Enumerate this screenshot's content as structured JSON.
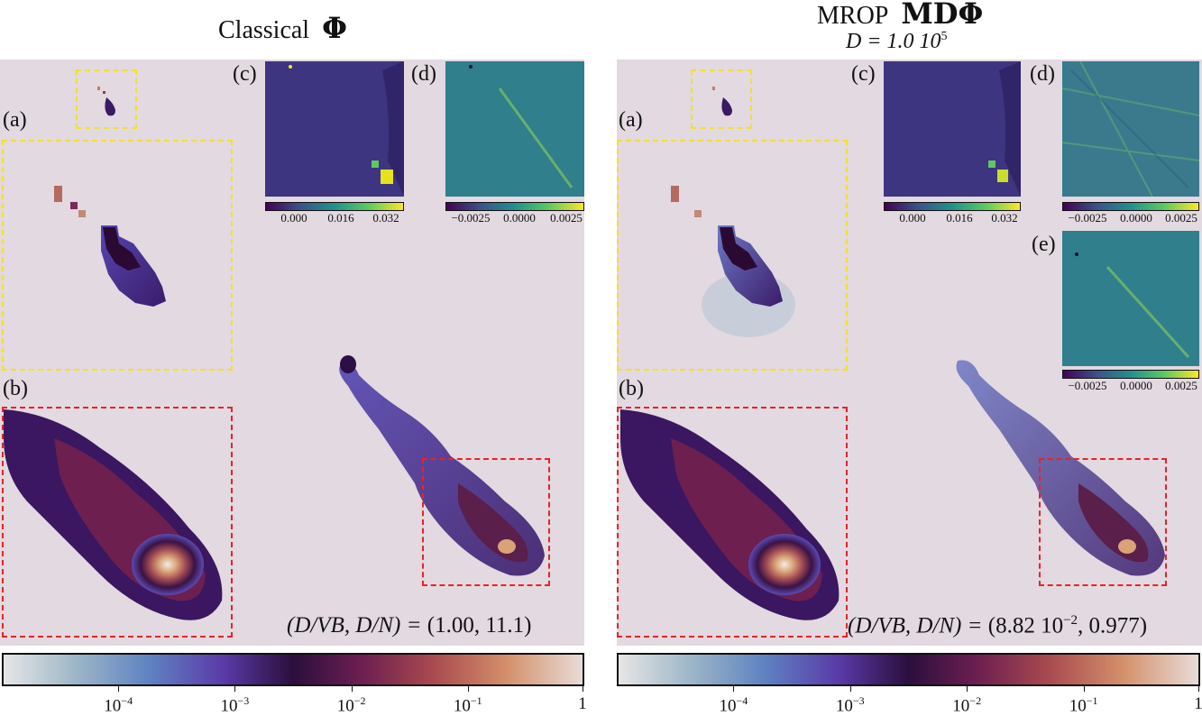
{
  "titles": {
    "left_text": "Classical",
    "left_symbol": "Φ",
    "right_text": "MROP",
    "right_symbol": "MDΦ",
    "right_sub": "D = 1.0 10",
    "right_sub_exp": "5"
  },
  "panel_labels": {
    "a": "(a)",
    "b": "(b)",
    "c": "(c)",
    "d": "(d)",
    "e": "(e)"
  },
  "left": {
    "stat_label": "(D/VB, D/N) =",
    "stat_value": "(1.00, 11.1)",
    "inset_c_ticks": [
      "0.000",
      "0.016",
      "0.032"
    ],
    "inset_d_ticks": [
      "−0.0025",
      "0.0000",
      "0.0025"
    ]
  },
  "right": {
    "stat_label": "(D/VB, D/N) =",
    "stat_value": "(8.82 10",
    "stat_value_exp": "−2",
    "stat_value_tail": ", 0.977)",
    "inset_c_ticks": [
      "0.000",
      "0.016",
      "0.032"
    ],
    "inset_d_ticks": [
      "−0.0025",
      "0.0000",
      "0.0025"
    ],
    "inset_e_ticks": [
      "−0.0025",
      "0.0000",
      "0.0025"
    ]
  },
  "colorbar": {
    "ticks": [
      {
        "base": "10",
        "exp": "−4"
      },
      {
        "base": "10",
        "exp": "−3"
      },
      {
        "base": "10",
        "exp": "−2"
      },
      {
        "base": "10",
        "exp": "−1"
      },
      {
        "base": "1",
        "exp": ""
      }
    ]
  },
  "colors": {
    "panel_bg": "#e3d9e0",
    "zoom_a_box": "#f2e02e",
    "zoom_b_box": "#e8222a"
  },
  "chart_data": {
    "type": "heatmap",
    "title": "",
    "colorbar_scale": "log",
    "colorbar_range": [
      1e-05,
      1
    ]
  }
}
